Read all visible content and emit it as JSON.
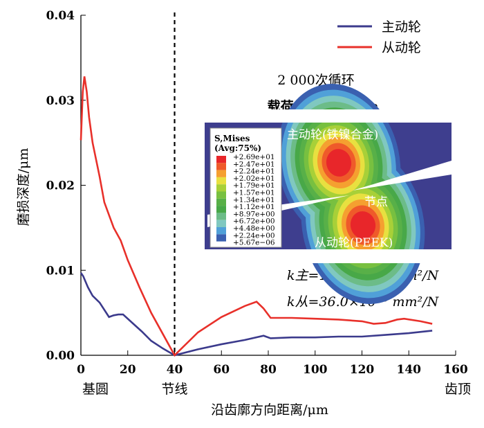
{
  "chart_data": {
    "type": "line",
    "xlabel": "沿齿廓方向距离/μm",
    "ylabel": "磨损深度/μm",
    "xlim": [
      0,
      160
    ],
    "ylim": [
      0,
      0.04
    ],
    "xticks": [
      "0",
      "20",
      "40",
      "60",
      "80",
      "100",
      "120",
      "140",
      "160"
    ],
    "yticks": [
      "0.00",
      "0.01",
      "0.02",
      "0.03",
      "0.04"
    ],
    "x_annotations": {
      "left": "基圆",
      "pitch": "节线",
      "right": "齿顶"
    },
    "pitch_line_x": 40,
    "grid": false,
    "legend_placement": "top-right",
    "series": [
      {
        "name": "主动轮",
        "color": "#3b3a8c",
        "x": [
          0,
          1,
          3,
          5,
          8,
          12,
          14,
          16,
          18,
          22,
          26,
          30,
          35,
          40,
          50,
          60,
          70,
          78,
          81,
          90,
          100,
          110,
          120,
          130,
          140,
          150
        ],
        "y": [
          0.0097,
          0.0093,
          0.008,
          0.007,
          0.0062,
          0.0045,
          0.0047,
          0.0048,
          0.0048,
          0.0038,
          0.0028,
          0.0017,
          0.0008,
          0,
          0.0007,
          0.0013,
          0.0018,
          0.0023,
          0.002,
          0.0021,
          0.0021,
          0.0022,
          0.0022,
          0.0024,
          0.0026,
          0.0029
        ]
      },
      {
        "name": "从动轮",
        "color": "#e8302a",
        "x": [
          0,
          0.8,
          1.5,
          2.5,
          3.5,
          5,
          8,
          10,
          14,
          17,
          20,
          25,
          30,
          35,
          40,
          50,
          60,
          70,
          75,
          78,
          81,
          90,
          100,
          110,
          120,
          125,
          130,
          135,
          138,
          145,
          150
        ],
        "y": [
          0.0253,
          0.031,
          0.0328,
          0.031,
          0.028,
          0.025,
          0.021,
          0.018,
          0.015,
          0.0135,
          0.0112,
          0.008,
          0.005,
          0.0025,
          0,
          0.0027,
          0.0045,
          0.0058,
          0.0063,
          0.0055,
          0.0044,
          0.0044,
          0.0043,
          0.0042,
          0.004,
          0.0037,
          0.0038,
          0.0042,
          0.0043,
          0.004,
          0.0037
        ]
      }
    ],
    "annotations": {
      "cycles": "2 000次循环",
      "load": "载荷：0.1 mN·m",
      "k_driver": "k主=13.5×10⁻⁹ mm²/N",
      "k_driven": "k从=36.0×10⁻⁹ mm²/N"
    },
    "inset": {
      "legend_title": "S,Mises",
      "legend_sub": "(Avg:75%)",
      "levels": [
        "+2.69e+01",
        "+2.47e+01",
        "+2.24e+01",
        "+2.02e+01",
        "+1.79e+01",
        "+1.57e+01",
        "+1.34e+01",
        "+1.12e+01",
        "+8.97e+00",
        "+6.72e+00",
        "+4.48e+00",
        "+2.24e+00",
        "+5.67e−06"
      ],
      "colors": [
        "#e8262a",
        "#ef5a2a",
        "#f5a030",
        "#e8e040",
        "#a8d038",
        "#78c040",
        "#58b048",
        "#48a848",
        "#6cbc88",
        "#80c8c0",
        "#50a0d8",
        "#3a60b0",
        "#3c3c8c"
      ],
      "driver_label": "主动轮(铁镍合金)",
      "node_label": "节点",
      "driven_label": "从动轮(PEEK)"
    }
  }
}
